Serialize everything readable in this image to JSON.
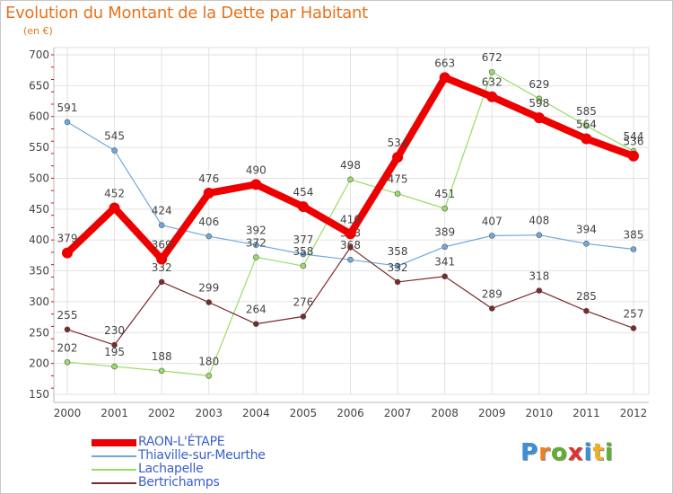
{
  "chart_data": {
    "type": "line",
    "title": "Evolution du Montant de la Dette par Habitant",
    "subtitle": "(en €)",
    "x": [
      "2000",
      "2001",
      "2002",
      "2003",
      "2004",
      "2005",
      "2006",
      "2007",
      "2008",
      "2009",
      "2010",
      "2011",
      "2012"
    ],
    "ylim": [
      150,
      700
    ],
    "yticks": [
      150,
      200,
      250,
      300,
      350,
      400,
      450,
      500,
      550,
      600,
      650,
      700
    ],
    "grid": true,
    "legend_position": "bottom-left",
    "series": [
      {
        "name": "RAON-L'ÉTAPE",
        "color": "#ee0000",
        "width": 8,
        "values": [
          379,
          452,
          369,
          476,
          490,
          454,
          410,
          534,
          663,
          632,
          598,
          564,
          536
        ]
      },
      {
        "name": "Thiaville-sur-Meurthe",
        "color": "#6fa8dc",
        "values": [
          591,
          545,
          424,
          406,
          392,
          377,
          368,
          358,
          389,
          407,
          408,
          394,
          385
        ]
      },
      {
        "name": "Lachapelle",
        "color": "#99dd66",
        "values": [
          202,
          195,
          188,
          180,
          372,
          358,
          498,
          475,
          451,
          672,
          629,
          585,
          544
        ]
      },
      {
        "name": "Bertrichamps",
        "color": "#7a2a2a",
        "values": [
          255,
          230,
          332,
          299,
          264,
          276,
          388,
          332,
          341,
          289,
          318,
          285,
          257
        ]
      }
    ]
  },
  "logo": {
    "letters": [
      "P",
      "r",
      "o",
      "x",
      "i",
      "t",
      "i"
    ],
    "colors": [
      "#3a8fd8",
      "#f08020",
      "#60b030",
      "#e03030",
      "#3a8fd8",
      "#f0b020",
      "#60b030"
    ]
  }
}
